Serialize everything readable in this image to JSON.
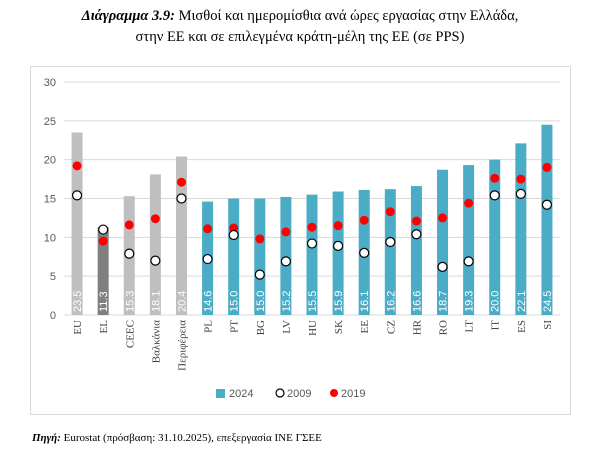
{
  "figure": {
    "label": "Διάγραμμα 3.9:",
    "title_line1": "Μισθοί και ημερομίσθια ανά ώρες εργασίας στην Ελλάδα,",
    "title_line2": "στην ΕΕ και σε επιλεγμένα κράτη-μέλη της ΕΕ (σε PPS)"
  },
  "source": {
    "label": "Πηγή:",
    "text": "Eurostat (πρόσβαση: 31.10.2025), επεξεργασία ΙΝΕ ΓΣΕΕ"
  },
  "colors": {
    "bar_2024": "#4bacc6",
    "bar_gray": "#bfbfbf",
    "bar_el": "#7f7f7f",
    "marker_2019": "#ff0000",
    "marker_2009_fill": "#ffffff",
    "marker_2009_stroke": "#000000",
    "grid": "#d9d9d9",
    "axis_text": "#595959"
  },
  "chart_data": {
    "type": "bar",
    "title": "",
    "xlabel": "",
    "ylabel": "",
    "ylim": [
      0,
      30
    ],
    "yticks": [
      0,
      5,
      10,
      15,
      20,
      25,
      30
    ],
    "grid": true,
    "legend_position": "bottom",
    "categories": [
      "EU",
      "EL",
      "CEEC",
      "Βαλκάνια",
      "Περιφέρεια",
      "PL",
      "PT",
      "BG",
      "LV",
      "HU",
      "SK",
      "EE",
      "CZ",
      "HR",
      "RO",
      "LT",
      "IT",
      "ES",
      "SI"
    ],
    "bar_styles": [
      "gray",
      "dark",
      "gray",
      "gray",
      "gray",
      "blue",
      "blue",
      "blue",
      "blue",
      "blue",
      "blue",
      "blue",
      "blue",
      "blue",
      "blue",
      "blue",
      "blue",
      "blue",
      "blue"
    ],
    "series": [
      {
        "name": "2024",
        "kind": "bar",
        "values": [
          23.5,
          11.3,
          15.3,
          18.1,
          20.4,
          14.6,
          15.0,
          15.0,
          15.2,
          15.5,
          15.9,
          16.1,
          16.2,
          16.6,
          18.7,
          19.3,
          20.0,
          22.1,
          24.5
        ],
        "labels": [
          "23.5",
          "11.3",
          "15.3",
          "18.1",
          "20.4",
          "14.6",
          "15.0",
          "15.0",
          "15.2",
          "15.5",
          "15.9",
          "16.1",
          "16.2",
          "16.6",
          "18.7",
          "19.3",
          "20.0",
          "22.1",
          "24.5"
        ]
      },
      {
        "name": "2009",
        "kind": "marker",
        "values": [
          15.4,
          11.0,
          7.9,
          7.0,
          15.0,
          7.2,
          10.3,
          5.2,
          6.9,
          9.2,
          8.9,
          8.0,
          9.4,
          10.4,
          6.2,
          6.9,
          15.4,
          15.6,
          14.2
        ]
      },
      {
        "name": "2019",
        "kind": "marker",
        "values": [
          19.2,
          9.5,
          11.6,
          12.4,
          17.1,
          11.1,
          11.2,
          9.8,
          10.7,
          11.3,
          11.5,
          12.2,
          13.3,
          12.1,
          12.5,
          14.4,
          17.6,
          17.5,
          19.0
        ]
      }
    ]
  }
}
